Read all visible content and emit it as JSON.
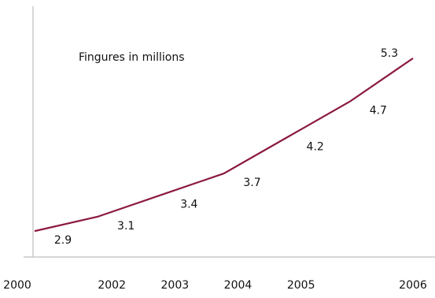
{
  "chart_data": {
    "type": "line",
    "annotation": "Fingures in millions",
    "categories": [
      "2000",
      "2002",
      "2003",
      "2004",
      "2005",
      null,
      "2006"
    ],
    "series": [
      {
        "name": null,
        "color": "#8b1a3f",
        "values": [
          2.9,
          3.1,
          3.4,
          3.7,
          4.2,
          4.7,
          5.3
        ]
      }
    ],
    "ylim": [
      2.54,
      6.0
    ]
  }
}
